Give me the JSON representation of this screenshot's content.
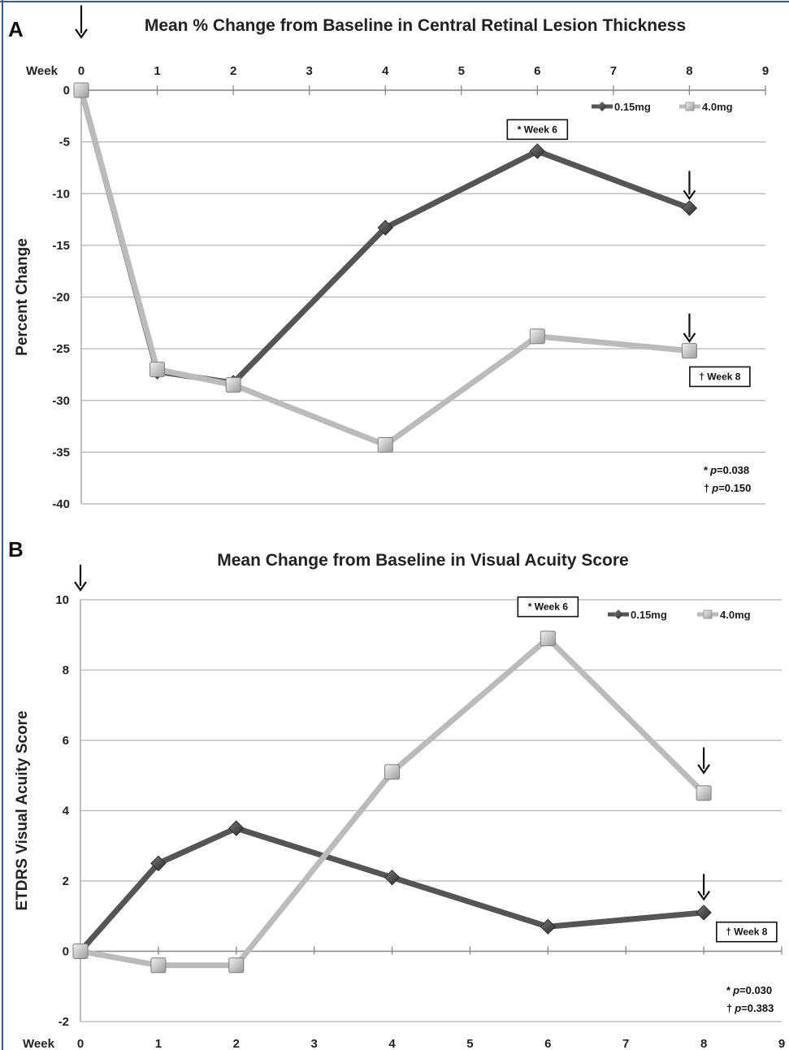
{
  "chart_data": [
    {
      "type": "line",
      "panel": "A",
      "title": "Mean % Change from Baseline in Central Retinal Lesion Thickness",
      "ylabel": "Percent Change",
      "x_axis_prefix": "Week",
      "x_ticks": [
        0,
        1,
        2,
        3,
        4,
        5,
        6,
        7,
        8,
        9
      ],
      "y_ticks": [
        0,
        -5,
        -10,
        -15,
        -20,
        -25,
        -30,
        -35,
        -40
      ],
      "xlim": [
        0,
        9
      ],
      "ylim": [
        -40,
        0
      ],
      "x_axis_position": "top",
      "grid": true,
      "legend_position": "top-right",
      "series": [
        {
          "name": "0.15mg",
          "marker": "diamond",
          "color": "#555555",
          "x": [
            0,
            1,
            2,
            4,
            6,
            8
          ],
          "y": [
            0,
            -27.2,
            -28.3,
            -13.3,
            -5.9,
            -11.4
          ]
        },
        {
          "name": "4.0mg",
          "marker": "square",
          "color": "#bbbbbb",
          "x": [
            0,
            1,
            2,
            4,
            6,
            8
          ],
          "y": [
            0,
            -27.0,
            -28.5,
            -34.3,
            -23.8,
            -25.2
          ]
        }
      ],
      "annotations": [
        {
          "text": "* Week 6",
          "x": 6,
          "y": -3.8,
          "boxed": true
        },
        {
          "text": "† Week 8",
          "x": 8.4,
          "y": -27.7,
          "boxed": true
        }
      ],
      "arrows": [
        {
          "x": 0,
          "y_from": 8.2,
          "y_to": 5.2
        },
        {
          "x": 8,
          "y_from": -7.8,
          "y_to": -10.4
        },
        {
          "x": 8,
          "y_from": -21.6,
          "y_to": -24.2
        }
      ],
      "p_values": [
        {
          "symbol": "*",
          "p": "p",
          "value": "=0.038"
        },
        {
          "symbol": "†",
          "p": "p",
          "value": "=0.150"
        }
      ]
    },
    {
      "type": "line",
      "panel": "B",
      "title": "Mean Change from Baseline in Visual Acuity Score",
      "ylabel": "ETDRS Visual Acuity Score",
      "x_axis_prefix": "Week",
      "x_ticks": [
        0,
        1,
        2,
        3,
        4,
        5,
        6,
        7,
        8,
        9
      ],
      "y_ticks": [
        10,
        8,
        6,
        4,
        2,
        0,
        -2
      ],
      "xlim": [
        0,
        9
      ],
      "ylim": [
        -2,
        10
      ],
      "x_axis_position": "bottom",
      "grid": true,
      "legend_position": "top-right",
      "series": [
        {
          "name": "0.15mg",
          "marker": "diamond",
          "color": "#555555",
          "x": [
            0,
            1,
            2,
            4,
            6,
            8
          ],
          "y": [
            0,
            2.5,
            3.5,
            2.1,
            0.7,
            1.1
          ]
        },
        {
          "name": "4.0mg",
          "marker": "square",
          "color": "#bbbbbb",
          "x": [
            0,
            1,
            2,
            4,
            6,
            8
          ],
          "y": [
            0,
            -0.4,
            -0.4,
            5.1,
            8.9,
            4.5
          ]
        }
      ],
      "annotations": [
        {
          "text": "* Week 6",
          "x": 6.0,
          "y": 9.8,
          "boxed": true
        },
        {
          "text": "† Week 8",
          "x": 8.55,
          "y": 0.55,
          "boxed": true
        }
      ],
      "arrows": [
        {
          "x": 0,
          "y_from": 11.0,
          "y_to": 10.3
        },
        {
          "x": 8,
          "y_from": 5.8,
          "y_to": 5.1
        },
        {
          "x": 8,
          "y_from": 2.2,
          "y_to": 1.5
        }
      ],
      "p_values": [
        {
          "symbol": "*",
          "p": "p",
          "value": "=0.030"
        },
        {
          "symbol": "†",
          "p": "p",
          "value": "=0.383"
        }
      ]
    }
  ]
}
